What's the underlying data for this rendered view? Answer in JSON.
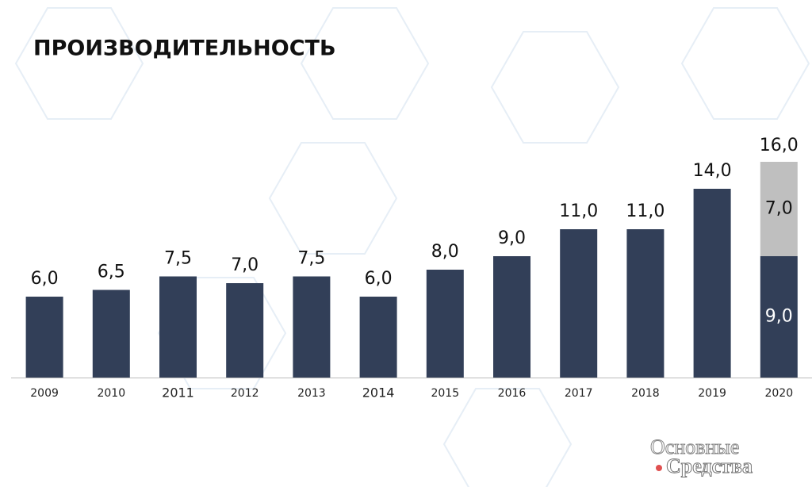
{
  "chart_data": {
    "type": "stacked_bar",
    "title": "ПРОИЗВОДИТЕЛЬНОСТЬ",
    "categories": [
      "2009",
      "2010",
      "2011",
      "2012",
      "2013",
      "2014",
      "2015",
      "2016",
      "2017",
      "2018",
      "2019",
      "2020"
    ],
    "series": [
      {
        "color": "#323f58",
        "values": [
          6,
          6.5,
          7.5,
          7,
          7.5,
          6,
          8,
          9,
          11,
          11,
          14,
          9
        ],
        "value_labels": [
          "6,0",
          "6,5",
          "7,5",
          "7,0",
          "7,5",
          "6,0",
          "8,0",
          "9,0",
          "11,0",
          "11,0",
          "14,0",
          "9,0"
        ]
      },
      {
        "color": "#bfbfbf",
        "values": [
          null,
          null,
          null,
          null,
          null,
          null,
          null,
          null,
          null,
          null,
          null,
          7
        ],
        "value_labels": [
          null,
          null,
          null,
          null,
          null,
          null,
          null,
          null,
          null,
          null,
          null,
          "7,0"
        ]
      }
    ],
    "totals": [
      null,
      null,
      null,
      null,
      null,
      null,
      null,
      null,
      null,
      null,
      null,
      16
    ],
    "total_labels": [
      null,
      null,
      null,
      null,
      null,
      null,
      null,
      null,
      null,
      null,
      null,
      "16,0"
    ],
    "watermark": [
      "Основные",
      "Средства"
    ]
  }
}
